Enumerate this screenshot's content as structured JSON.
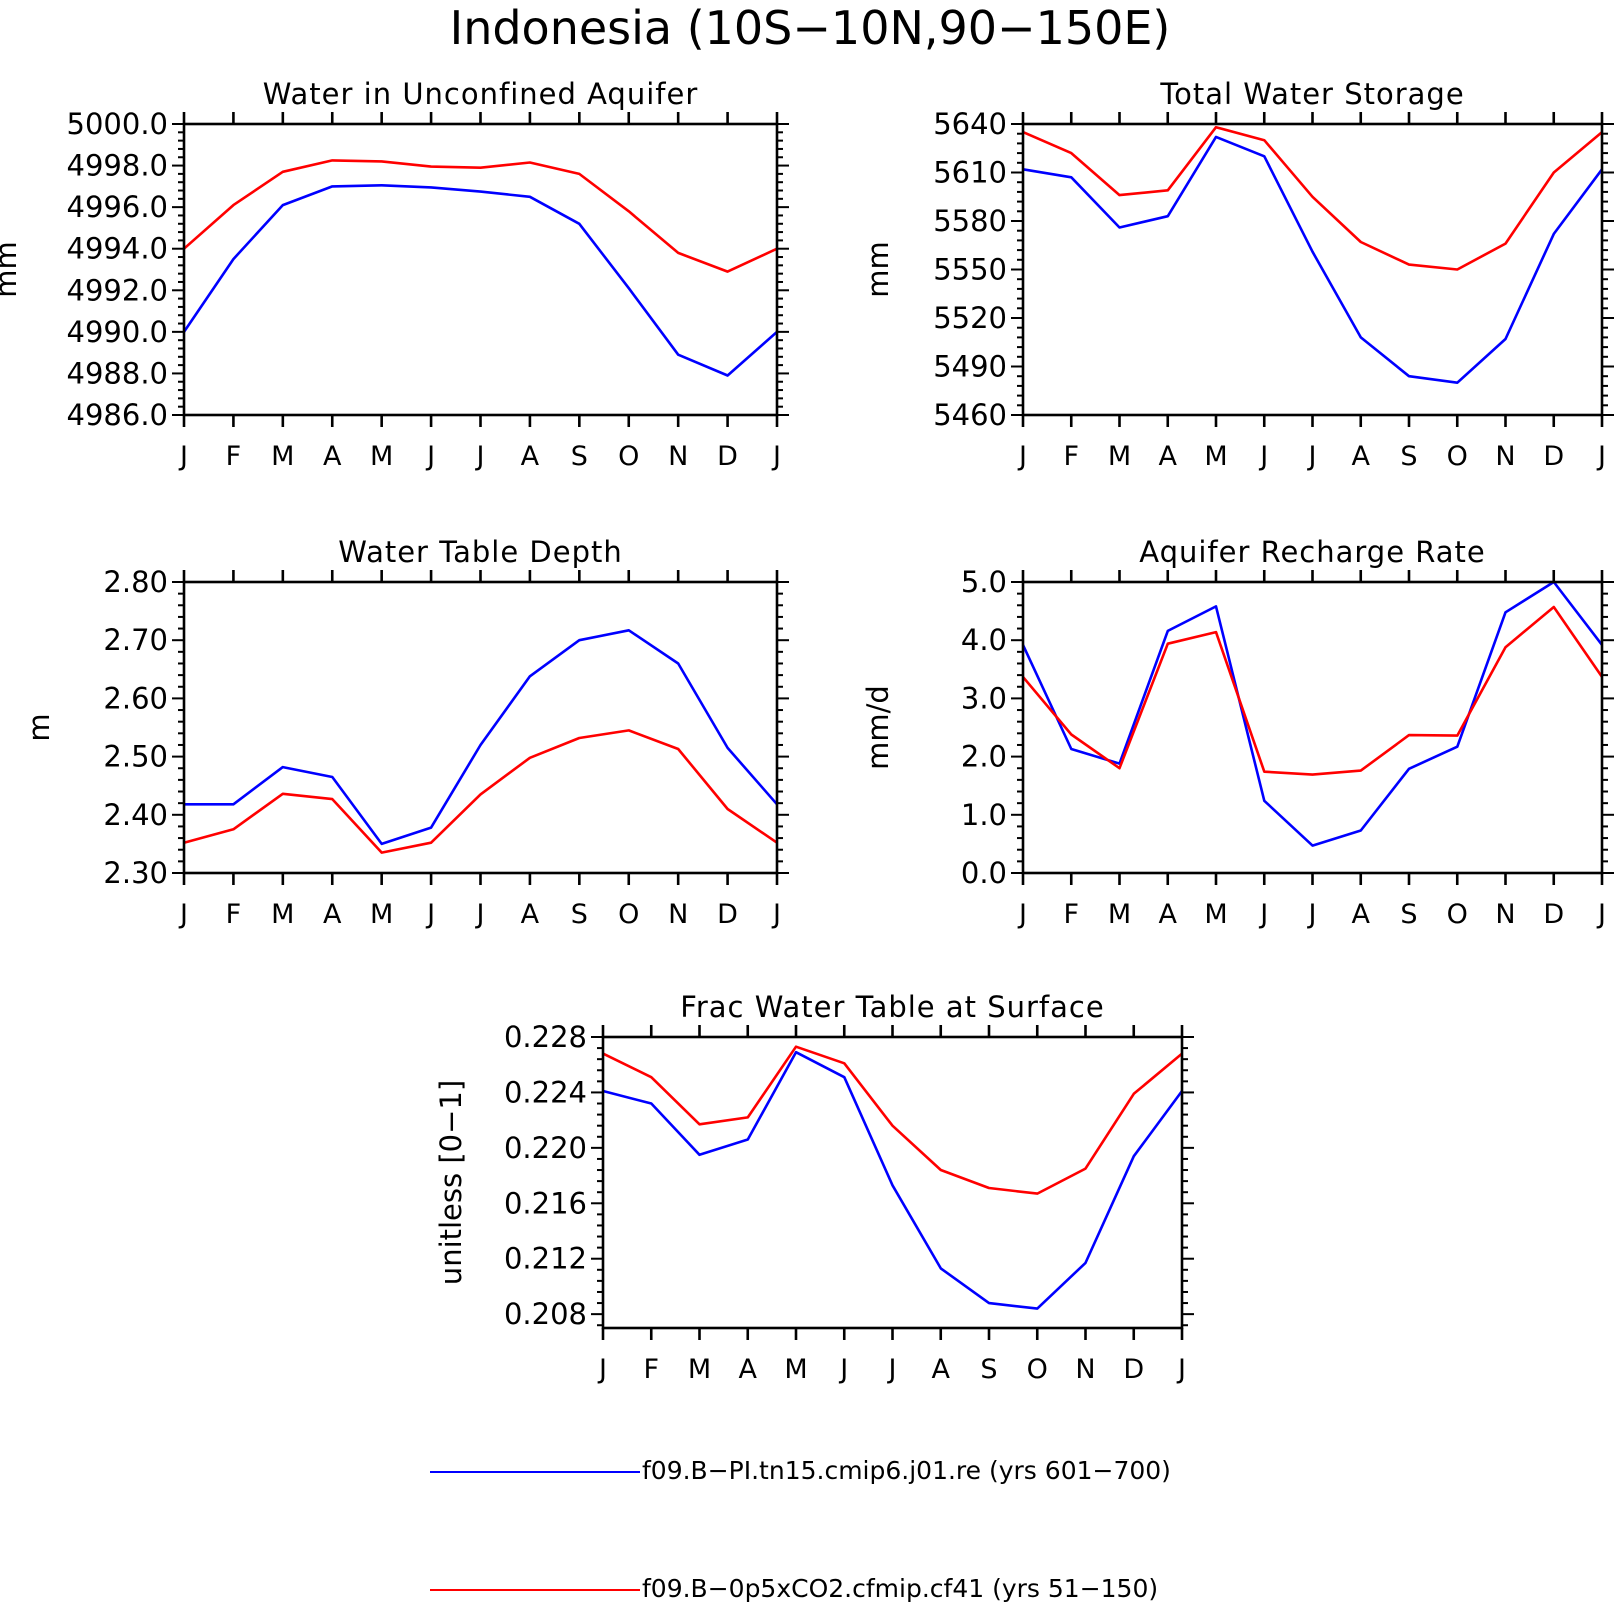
{
  "figure_title": "Indonesia (10S−10N,90−150E)",
  "colors": {
    "series1": "#0000ff",
    "series2": "#ff0000",
    "axis": "#000000"
  },
  "legend": [
    {
      "label": "f09.B−PI.tn15.cmip6.j01.re (yrs 601−700)",
      "color": "#0000ff"
    },
    {
      "label": "f09.B−0p5xCO2.cfmip.cf41 (yrs 51−150)",
      "color": "#ff0000"
    }
  ],
  "chart_data": [
    {
      "type": "line",
      "title": "Water in Unconfined Aquifer",
      "ylabel": "mm",
      "ylim": [
        4986,
        5000
      ],
      "yticks": [
        "4986.0",
        "4988.0",
        "4990.0",
        "4992.0",
        "4994.0",
        "4996.0",
        "4998.0",
        "5000.0"
      ],
      "categories": [
        "J",
        "F",
        "M",
        "A",
        "M",
        "J",
        "J",
        "A",
        "S",
        "O",
        "N",
        "D",
        "J"
      ],
      "series": [
        {
          "values": [
            4990.0,
            4993.5,
            4996.1,
            4997.0,
            4997.05,
            4996.95,
            4996.75,
            4996.5,
            4995.2,
            4992.1,
            4988.9,
            4987.9,
            4990.0
          ]
        },
        {
          "values": [
            4994.0,
            4996.1,
            4997.7,
            4998.25,
            4998.2,
            4997.95,
            4997.9,
            4998.15,
            4997.6,
            4995.8,
            4993.8,
            4992.9,
            4994.0
          ]
        }
      ]
    },
    {
      "type": "line",
      "title": "Total Water Storage",
      "ylabel": "mm",
      "ylim": [
        5460,
        5640
      ],
      "yticks": [
        "5460",
        "5490",
        "5520",
        "5550",
        "5580",
        "5610",
        "5640"
      ],
      "categories": [
        "J",
        "F",
        "M",
        "A",
        "M",
        "J",
        "J",
        "A",
        "S",
        "O",
        "N",
        "D",
        "J"
      ],
      "series": [
        {
          "values": [
            5612,
            5607,
            5576,
            5583,
            5632,
            5620,
            5561,
            5508,
            5484,
            5480,
            5507,
            5572,
            5612
          ]
        },
        {
          "values": [
            5635,
            5622,
            5596,
            5599,
            5638,
            5630,
            5595,
            5567,
            5553,
            5550,
            5566,
            5610,
            5635
          ]
        }
      ]
    },
    {
      "type": "line",
      "title": "Water Table Depth",
      "ylabel": "m",
      "ylim": [
        2.3,
        2.8
      ],
      "yticks": [
        "2.30",
        "2.40",
        "2.50",
        "2.60",
        "2.70",
        "2.80"
      ],
      "categories": [
        "J",
        "F",
        "M",
        "A",
        "M",
        "J",
        "J",
        "A",
        "S",
        "O",
        "N",
        "D",
        "J"
      ],
      "series": [
        {
          "values": [
            2.418,
            2.418,
            2.482,
            2.465,
            2.35,
            2.378,
            2.52,
            2.638,
            2.7,
            2.717,
            2.66,
            2.515,
            2.418
          ]
        },
        {
          "values": [
            2.352,
            2.375,
            2.436,
            2.427,
            2.335,
            2.352,
            2.435,
            2.498,
            2.532,
            2.545,
            2.513,
            2.41,
            2.352
          ]
        }
      ]
    },
    {
      "type": "line",
      "title": "Aquifer Recharge Rate",
      "ylabel": "mm/d",
      "ylim": [
        0,
        5
      ],
      "yticks": [
        "0.0",
        "1.0",
        "2.0",
        "3.0",
        "4.0",
        "5.0"
      ],
      "categories": [
        "J",
        "F",
        "M",
        "A",
        "M",
        "J",
        "J",
        "A",
        "S",
        "O",
        "N",
        "D",
        "J"
      ],
      "series": [
        {
          "values": [
            3.92,
            2.13,
            1.88,
            4.16,
            4.58,
            1.24,
            0.47,
            0.73,
            1.79,
            2.17,
            4.48,
            5.0,
            3.92
          ]
        },
        {
          "values": [
            3.37,
            2.38,
            1.8,
            3.94,
            4.14,
            1.74,
            1.69,
            1.76,
            2.37,
            2.36,
            3.88,
            4.57,
            3.37
          ]
        }
      ]
    },
    {
      "type": "line",
      "title": "Frac Water Table at Surface",
      "ylabel": "unitless [0−1]",
      "ylim": [
        0.207,
        0.228
      ],
      "yticks": [
        "0.208",
        "0.212",
        "0.216",
        "0.220",
        "0.224",
        "0.228"
      ],
      "categories": [
        "J",
        "F",
        "M",
        "A",
        "M",
        "J",
        "J",
        "A",
        "S",
        "O",
        "N",
        "D",
        "J"
      ],
      "series": [
        {
          "values": [
            0.2241,
            0.2232,
            0.2195,
            0.2206,
            0.2269,
            0.2251,
            0.2173,
            0.2113,
            0.2088,
            0.2084,
            0.2117,
            0.2194,
            0.2241
          ]
        },
        {
          "values": [
            0.2268,
            0.2251,
            0.2217,
            0.2222,
            0.2273,
            0.2261,
            0.2216,
            0.2184,
            0.2171,
            0.2167,
            0.2185,
            0.2239,
            0.2268
          ]
        }
      ]
    }
  ]
}
